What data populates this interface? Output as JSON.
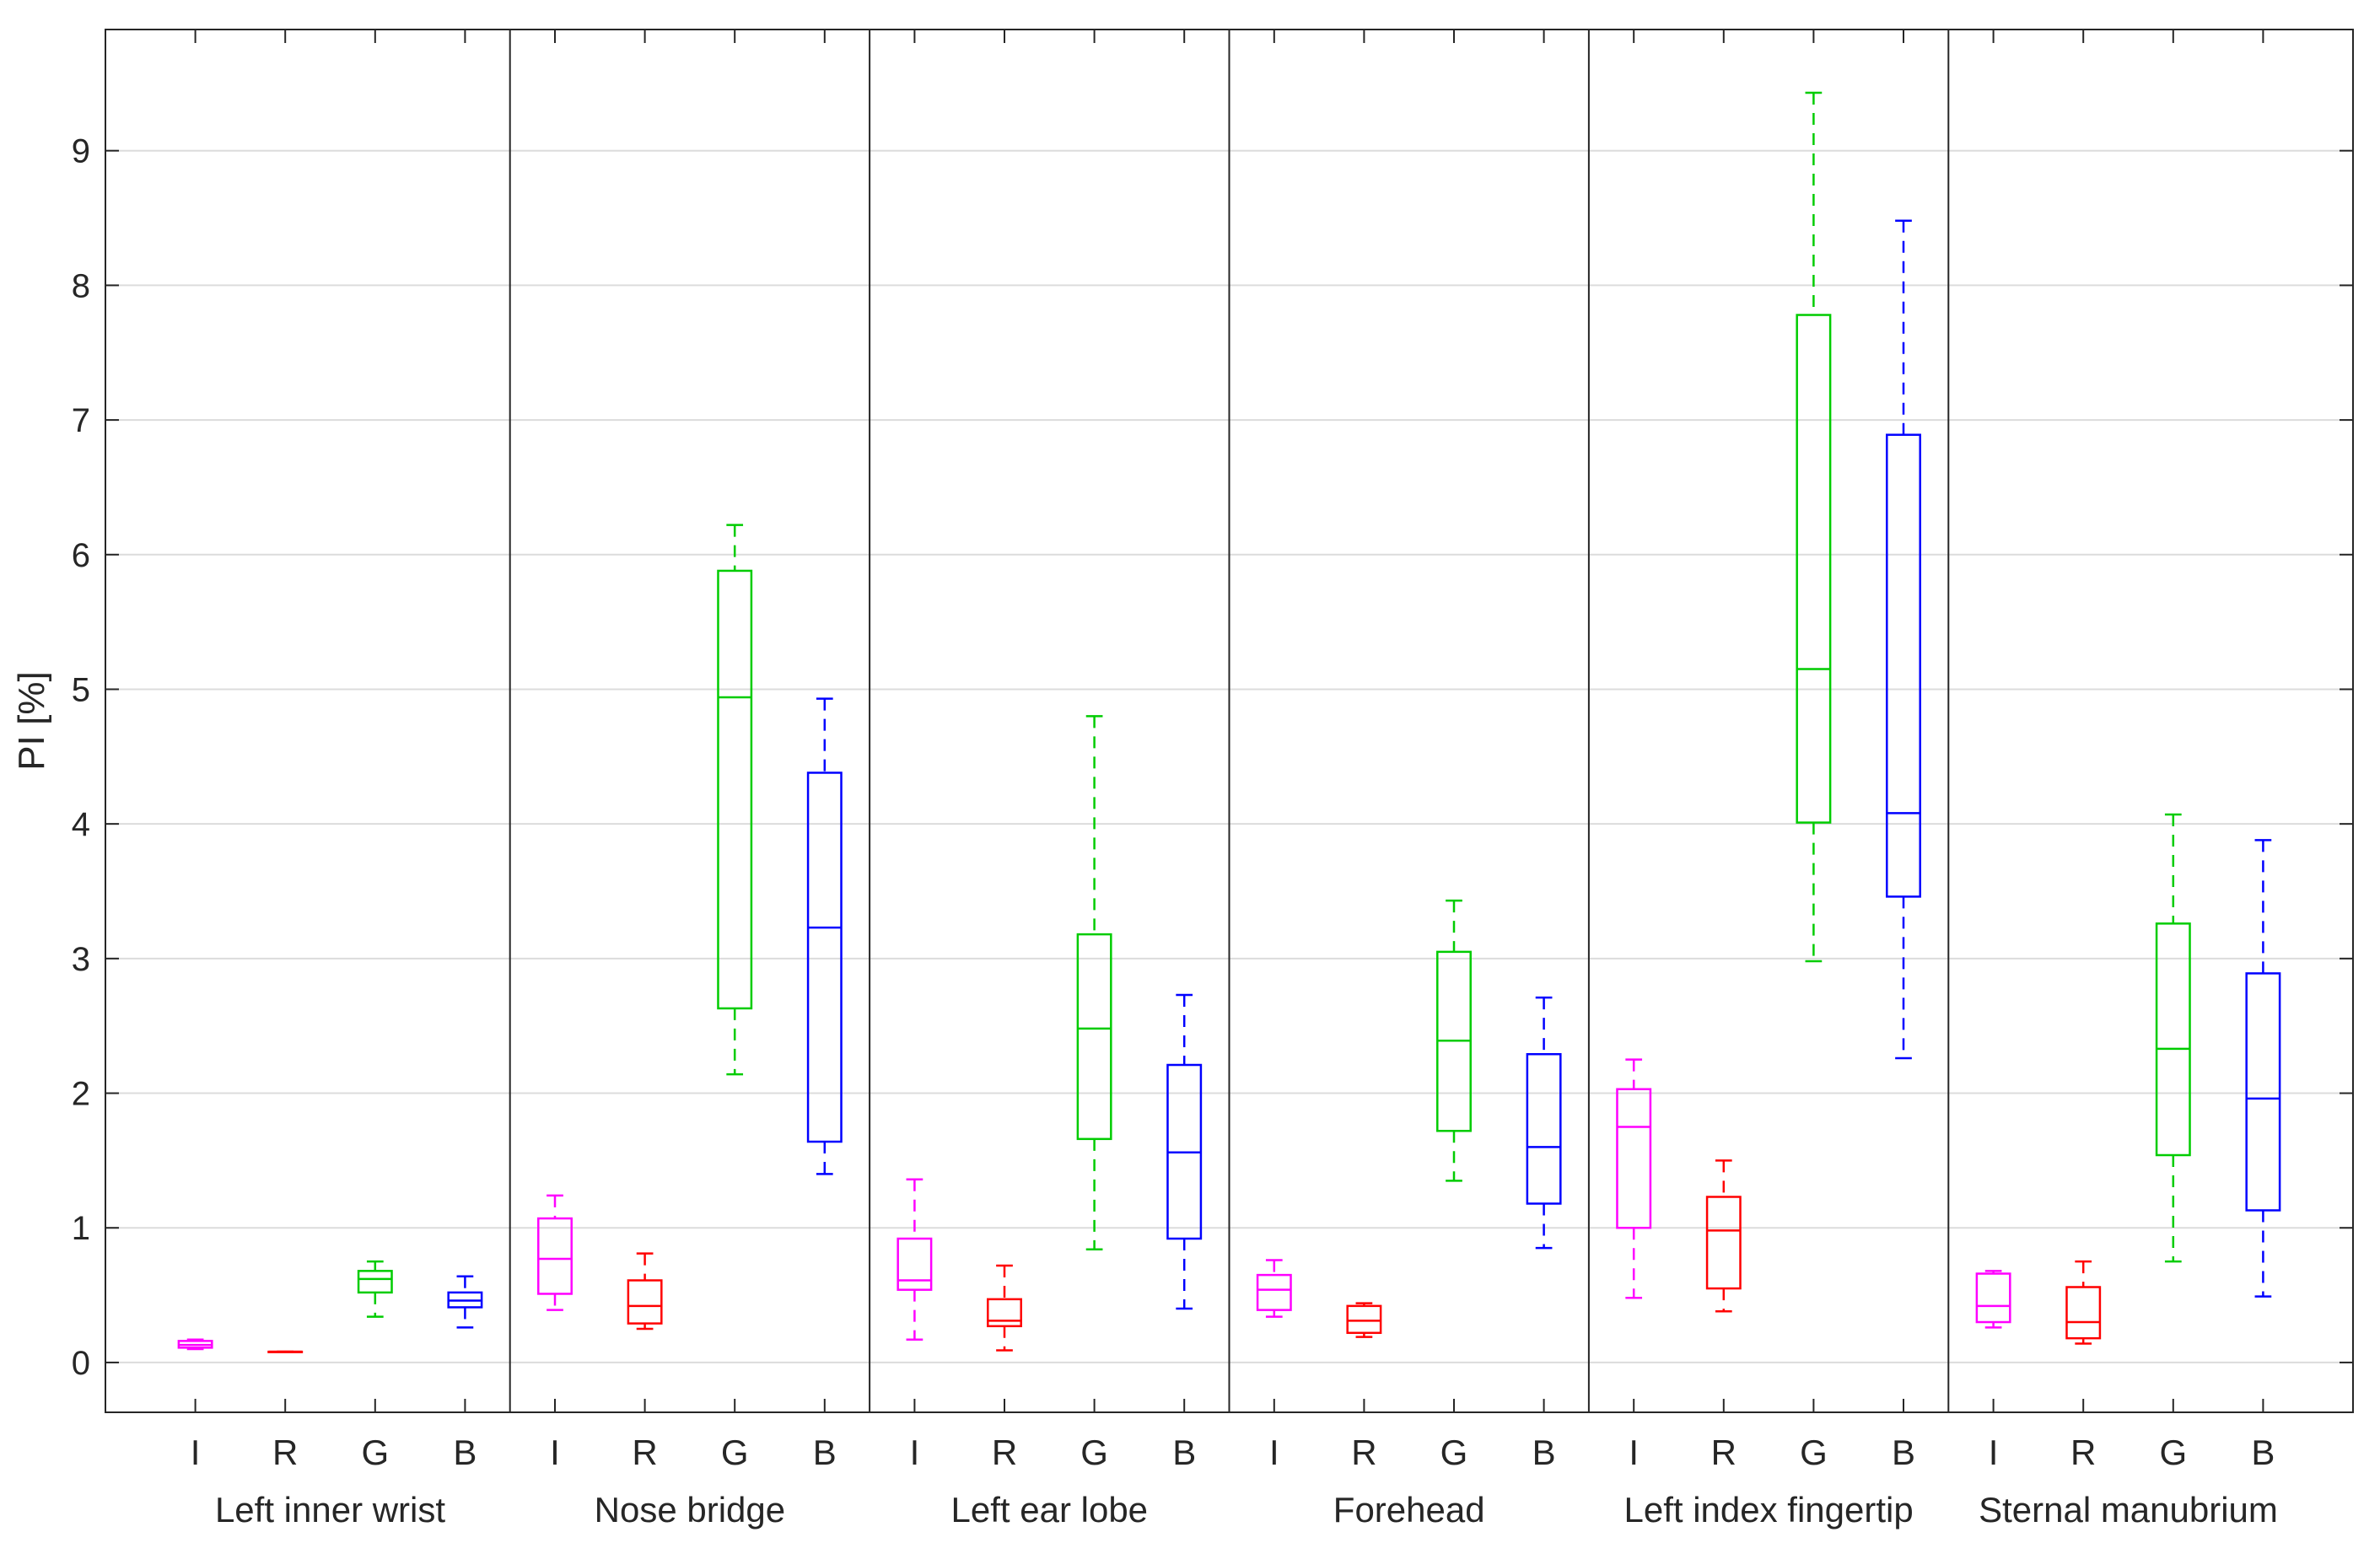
{
  "chart_data": {
    "type": "box",
    "title": "",
    "xlabel": "",
    "ylabel": "PI [%]",
    "ylim": [
      -0.37,
      9.9
    ],
    "yticks": [
      "0",
      "1",
      "2",
      "3",
      "4",
      "5",
      "6",
      "7",
      "8",
      "9"
    ],
    "grid": true,
    "channels": [
      "I",
      "R",
      "G",
      "B"
    ],
    "channel_colors": {
      "I": "#ff00ff",
      "R": "#ff0000",
      "G": "#00cc00",
      "B": "#0000ff"
    },
    "groups": [
      {
        "name": "Left inner wrist",
        "boxes": [
          {
            "channel": "I",
            "min": 0.1,
            "q1": 0.11,
            "median": 0.13,
            "q3": 0.16,
            "max": 0.17
          },
          {
            "channel": "R",
            "min": 0.08,
            "q1": 0.08,
            "median": 0.08,
            "q3": 0.08,
            "max": 0.08
          },
          {
            "channel": "G",
            "min": 0.34,
            "q1": 0.52,
            "median": 0.62,
            "q3": 0.68,
            "max": 0.75
          },
          {
            "channel": "B",
            "min": 0.26,
            "q1": 0.41,
            "median": 0.46,
            "q3": 0.52,
            "max": 0.64
          }
        ]
      },
      {
        "name": "Nose bridge",
        "boxes": [
          {
            "channel": "I",
            "min": 0.39,
            "q1": 0.51,
            "median": 0.77,
            "q3": 1.07,
            "max": 1.24
          },
          {
            "channel": "R",
            "min": 0.25,
            "q1": 0.29,
            "median": 0.42,
            "q3": 0.61,
            "max": 0.81
          },
          {
            "channel": "G",
            "min": 2.14,
            "q1": 2.63,
            "median": 4.94,
            "q3": 5.88,
            "max": 6.22
          },
          {
            "channel": "B",
            "min": 1.4,
            "q1": 1.64,
            "median": 3.23,
            "q3": 4.38,
            "max": 4.93
          }
        ]
      },
      {
        "name": "Left ear lobe",
        "boxes": [
          {
            "channel": "I",
            "min": 0.17,
            "q1": 0.54,
            "median": 0.61,
            "q3": 0.92,
            "max": 1.36
          },
          {
            "channel": "R",
            "min": 0.09,
            "q1": 0.27,
            "median": 0.31,
            "q3": 0.47,
            "max": 0.72
          },
          {
            "channel": "G",
            "min": 0.84,
            "q1": 1.66,
            "median": 2.48,
            "q3": 3.18,
            "max": 4.8
          },
          {
            "channel": "B",
            "min": 0.4,
            "q1": 0.92,
            "median": 1.56,
            "q3": 2.21,
            "max": 2.73
          }
        ]
      },
      {
        "name": "Forehead",
        "boxes": [
          {
            "channel": "I",
            "min": 0.34,
            "q1": 0.39,
            "median": 0.54,
            "q3": 0.65,
            "max": 0.76
          },
          {
            "channel": "R",
            "min": 0.19,
            "q1": 0.22,
            "median": 0.31,
            "q3": 0.42,
            "max": 0.44
          },
          {
            "channel": "G",
            "min": 1.35,
            "q1": 1.72,
            "median": 2.39,
            "q3": 3.05,
            "max": 3.43
          },
          {
            "channel": "B",
            "min": 0.85,
            "q1": 1.18,
            "median": 1.6,
            "q3": 2.29,
            "max": 2.71
          }
        ]
      },
      {
        "name": "Left index fingertip",
        "boxes": [
          {
            "channel": "I",
            "min": 0.48,
            "q1": 1.0,
            "median": 1.75,
            "q3": 2.03,
            "max": 2.25
          },
          {
            "channel": "R",
            "min": 0.38,
            "q1": 0.55,
            "median": 0.98,
            "q3": 1.23,
            "max": 1.5
          },
          {
            "channel": "G",
            "min": 2.98,
            "q1": 4.01,
            "median": 5.15,
            "q3": 7.78,
            "max": 9.43
          },
          {
            "channel": "B",
            "min": 2.26,
            "q1": 3.46,
            "median": 4.08,
            "q3": 6.89,
            "max": 8.48
          }
        ]
      },
      {
        "name": "Sternal manubrium",
        "boxes": [
          {
            "channel": "I",
            "min": 0.26,
            "q1": 0.3,
            "median": 0.42,
            "q3": 0.66,
            "max": 0.68
          },
          {
            "channel": "R",
            "min": 0.14,
            "q1": 0.18,
            "median": 0.3,
            "q3": 0.56,
            "max": 0.75
          },
          {
            "channel": "G",
            "min": 0.75,
            "q1": 1.54,
            "median": 2.33,
            "q3": 3.26,
            "max": 4.07
          },
          {
            "channel": "B",
            "min": 0.49,
            "q1": 1.13,
            "median": 1.96,
            "q3": 2.89,
            "max": 3.88
          }
        ]
      }
    ]
  }
}
